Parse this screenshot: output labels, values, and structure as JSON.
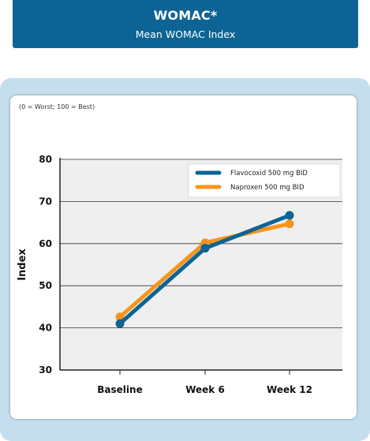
{
  "header": {
    "title": "WOMAC*",
    "subtitle": "Mean WOMAC Index"
  },
  "chart_data": {
    "type": "line",
    "scale_note": "(0 = Worst; 100 = Best)",
    "ylabel": "Index",
    "xlabel": "",
    "categories": [
      "Baseline",
      "Week 6",
      "Week 12"
    ],
    "ylim": [
      30,
      80
    ],
    "yticks": [
      30,
      40,
      50,
      60,
      70,
      80
    ],
    "grid": true,
    "legend_position": "top-right",
    "series": [
      {
        "name": "Flavocoxid 500 mg BID",
        "values": [
          41.0,
          58.9,
          66.7
        ],
        "color": "#0d6494"
      },
      {
        "name": "Naproxen 500 mg BID",
        "values": [
          42.6,
          60.2,
          64.7
        ],
        "color": "#f7941d"
      }
    ]
  }
}
